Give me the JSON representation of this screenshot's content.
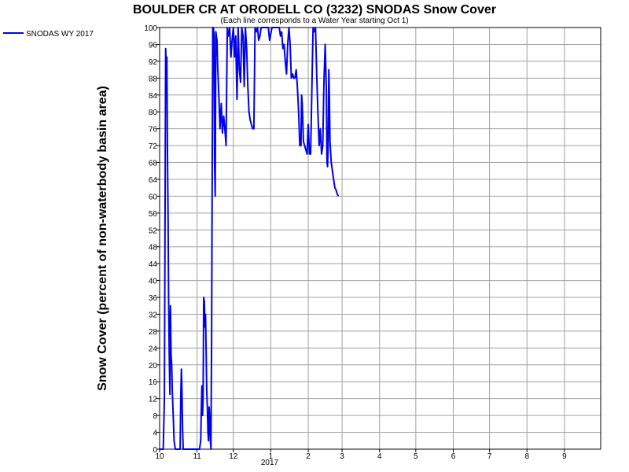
{
  "chart_data": {
    "type": "line",
    "title": "BOULDER CR AT ORODELL CO (3232) SNODAS Snow Cover",
    "subtitle": "(Each line corresponds to a Water Year starting Oct 1)",
    "ylabel": "Snow Cover (percent of non-waterbody basin area)",
    "xlabel": "",
    "year_label": "2017",
    "ylim": [
      0,
      100
    ],
    "y_ticks": [
      0,
      4,
      8,
      12,
      16,
      20,
      24,
      28,
      32,
      36,
      40,
      44,
      48,
      52,
      56,
      60,
      64,
      68,
      72,
      76,
      80,
      84,
      88,
      92,
      96,
      100
    ],
    "x_ticks": [
      {
        "day": 0,
        "label": "10"
      },
      {
        "day": 31,
        "label": "11"
      },
      {
        "day": 61,
        "label": "12"
      },
      {
        "day": 92,
        "label": "1"
      },
      {
        "day": 123,
        "label": "2"
      },
      {
        "day": 151,
        "label": "3"
      },
      {
        "day": 182,
        "label": "4"
      },
      {
        "day": 212,
        "label": "5"
      },
      {
        "day": 243,
        "label": "6"
      },
      {
        "day": 273,
        "label": "7"
      },
      {
        "day": 304,
        "label": "8"
      },
      {
        "day": 335,
        "label": "9"
      }
    ],
    "xlim": [
      0,
      365
    ],
    "grid": true,
    "legend_position": "top-left outside",
    "series": [
      {
        "name": "SNODAS WY 2017",
        "color": "#0000ee",
        "points": [
          [
            0,
            0
          ],
          [
            3,
            0
          ],
          [
            4,
            12
          ],
          [
            5,
            95
          ],
          [
            5.5,
            90
          ],
          [
            6,
            93
          ],
          [
            6.5,
            70
          ],
          [
            7,
            54
          ],
          [
            7.5,
            35
          ],
          [
            8,
            22
          ],
          [
            8.5,
            13
          ],
          [
            9,
            34
          ],
          [
            9.5,
            22
          ],
          [
            10,
            20
          ],
          [
            10.5,
            14
          ],
          [
            11,
            10
          ],
          [
            11.5,
            6
          ],
          [
            12,
            2
          ],
          [
            13,
            0
          ],
          [
            17,
            0
          ],
          [
            17.5,
            12
          ],
          [
            18,
            19
          ],
          [
            18.5,
            14
          ],
          [
            19,
            5
          ],
          [
            19.5,
            0
          ],
          [
            33,
            0
          ],
          [
            34,
            2
          ],
          [
            34.5,
            9
          ],
          [
            35,
            15
          ],
          [
            35.5,
            8
          ],
          [
            36,
            12
          ],
          [
            36.5,
            36
          ],
          [
            37,
            35
          ],
          [
            37.5,
            29
          ],
          [
            38,
            32
          ],
          [
            38.5,
            23
          ],
          [
            39,
            14
          ],
          [
            39.5,
            10
          ],
          [
            40,
            4
          ],
          [
            40.5,
            2
          ],
          [
            41,
            10
          ],
          [
            41.5,
            7
          ],
          [
            42,
            2
          ],
          [
            42.5,
            0
          ],
          [
            43,
            25
          ],
          [
            44,
            100
          ],
          [
            44.5,
            100
          ],
          [
            45,
            98
          ],
          [
            45.5,
            68
          ],
          [
            46,
            60
          ],
          [
            46.5,
            99
          ],
          [
            47,
            98
          ],
          [
            47.5,
            97
          ],
          [
            48,
            91
          ],
          [
            49,
            84
          ],
          [
            50,
            76
          ],
          [
            51,
            82
          ],
          [
            52,
            75
          ],
          [
            53,
            79
          ],
          [
            54,
            76
          ],
          [
            55,
            72
          ],
          [
            56,
            100
          ],
          [
            57,
            98
          ],
          [
            58,
            100
          ],
          [
            59,
            93
          ],
          [
            60,
            97
          ],
          [
            61,
            100
          ],
          [
            62,
            93
          ],
          [
            63,
            98
          ],
          [
            64,
            83
          ],
          [
            65,
            100
          ],
          [
            66,
            90
          ],
          [
            67,
            87
          ],
          [
            68,
            100
          ],
          [
            69,
            98
          ],
          [
            70,
            86
          ],
          [
            71,
            100
          ],
          [
            72,
            95
          ],
          [
            73,
            86
          ],
          [
            74,
            80
          ],
          [
            75,
            78
          ],
          [
            76,
            77
          ],
          [
            77,
            76
          ],
          [
            78,
            76
          ],
          [
            79,
            100
          ],
          [
            80,
            99
          ],
          [
            81,
            100
          ],
          [
            82,
            97
          ],
          [
            83,
            98
          ],
          [
            84,
            100
          ],
          [
            90,
            100
          ],
          [
            91,
            97
          ],
          [
            93,
            100
          ],
          [
            99,
            100
          ],
          [
            100,
            98
          ],
          [
            101,
            99
          ],
          [
            102,
            95
          ],
          [
            103,
            96
          ],
          [
            104,
            92
          ],
          [
            105,
            89
          ],
          [
            106,
            96
          ],
          [
            107,
            100
          ],
          [
            108,
            96
          ],
          [
            109,
            88
          ],
          [
            110,
            89
          ],
          [
            111,
            88
          ],
          [
            112,
            88
          ],
          [
            113,
            90
          ],
          [
            114,
            86
          ],
          [
            115,
            80
          ],
          [
            116,
            72
          ],
          [
            117,
            72
          ],
          [
            117.5,
            84
          ],
          [
            118,
            82
          ],
          [
            118.5,
            78
          ],
          [
            119,
            73
          ],
          [
            120,
            72
          ],
          [
            121,
            71
          ],
          [
            122,
            70
          ],
          [
            123,
            77
          ],
          [
            124,
            70
          ],
          [
            125,
            70
          ],
          [
            126,
            86
          ],
          [
            127,
            100
          ],
          [
            128,
            99
          ],
          [
            129,
            100
          ],
          [
            130,
            89
          ],
          [
            131,
            80
          ],
          [
            132,
            72
          ],
          [
            133,
            76
          ],
          [
            134,
            70
          ],
          [
            135,
            72
          ],
          [
            136,
            87
          ],
          [
            137,
            96
          ],
          [
            137.5,
            91
          ],
          [
            138,
            85
          ],
          [
            138.5,
            68
          ],
          [
            139,
            67
          ],
          [
            139.5,
            72
          ],
          [
            140,
            90
          ],
          [
            140.5,
            84
          ],
          [
            141,
            73
          ],
          [
            142,
            68
          ],
          [
            143,
            66
          ],
          [
            144,
            64
          ],
          [
            145,
            62
          ],
          [
            146,
            61.5
          ],
          [
            147,
            60.5
          ],
          [
            148,
            60
          ]
        ]
      }
    ]
  }
}
